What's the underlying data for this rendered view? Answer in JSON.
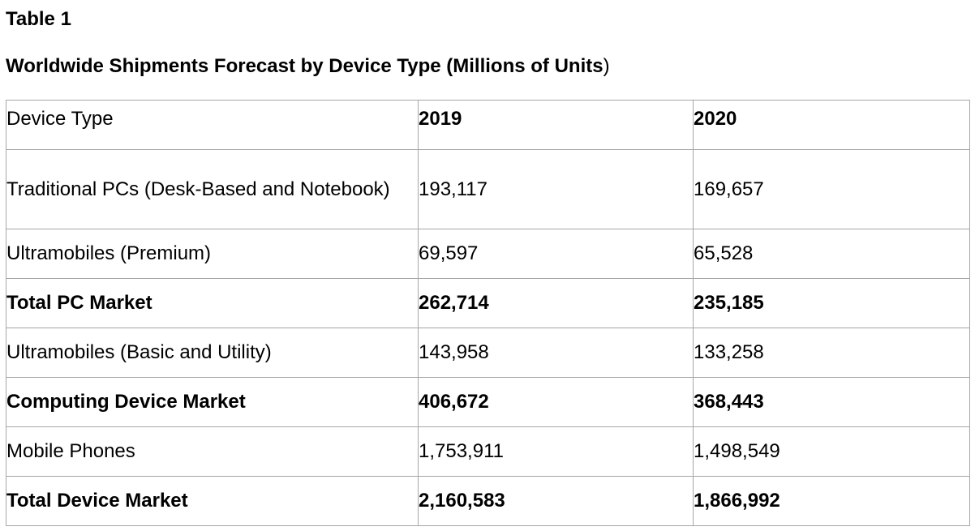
{
  "document": {
    "table_label": "Table 1",
    "caption_main": "Worldwide Shipments Forecast by Device Type (Millions of Units",
    "caption_close": ")"
  },
  "table": {
    "headers": [
      "Device Type",
      "2019",
      "2020"
    ],
    "rows": [
      {
        "device": "Traditional PCs (Desk-Based and Notebook)",
        "y2019": "193,117",
        "y2020": "169,657",
        "bold": false
      },
      {
        "device": "Ultramobiles (Premium)",
        "y2019": "69,597",
        "y2020": "65,528",
        "bold": false
      },
      {
        "device": "Total PC Market",
        "y2019": "262,714",
        "y2020": "235,185",
        "bold": true
      },
      {
        "device": "Ultramobiles (Basic and Utility)",
        "y2019": "143,958",
        "y2020": "133,258",
        "bold": false
      },
      {
        "device": "Computing Device Market",
        "y2019": "406,672",
        "y2020": "368,443",
        "bold": true
      },
      {
        "device": "Mobile Phones",
        "y2019": "1,753,911",
        "y2020": "1,498,549",
        "bold": false
      },
      {
        "device": "Total Device Market",
        "y2019": "2,160,583",
        "y2020": "1,866,992",
        "bold": true
      }
    ]
  }
}
